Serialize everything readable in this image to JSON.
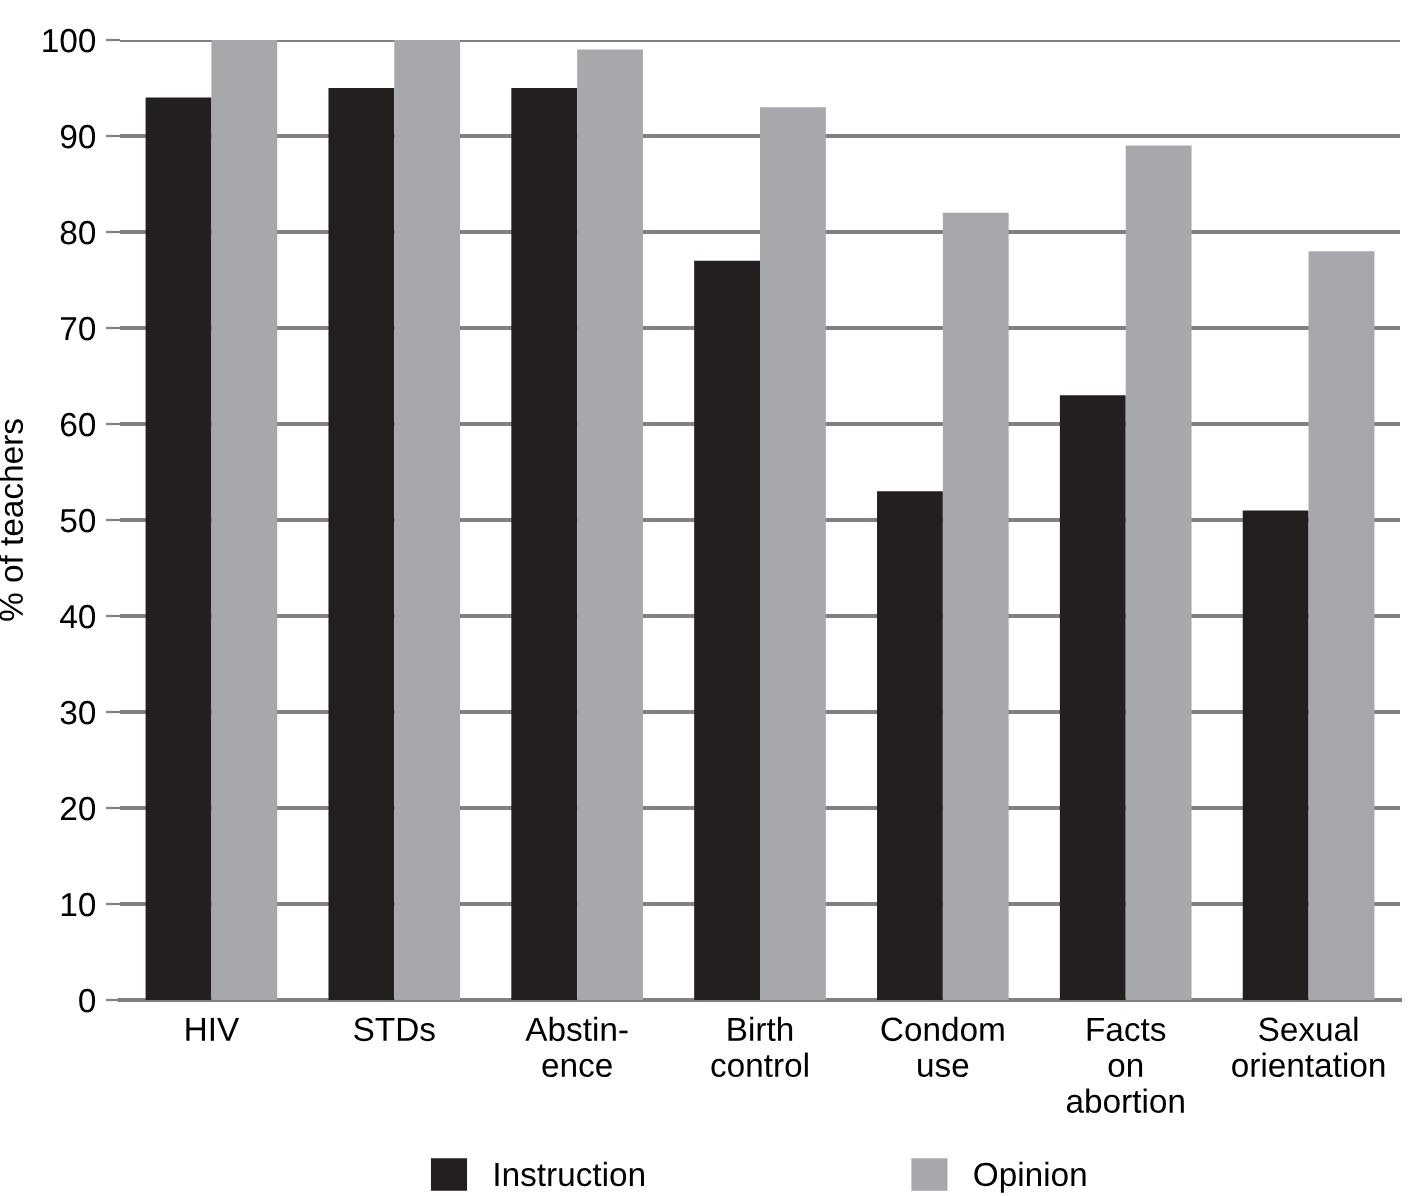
{
  "chart_data": {
    "type": "bar",
    "ylabel": "% of teachers",
    "categories": [
      "HIV",
      "STDs",
      "Abstin-\nence",
      "Birth\ncontrol",
      "Condom\nuse",
      "Facts\non\nabortion",
      "Sexual\norientation"
    ],
    "series": [
      {
        "name": "Instruction",
        "color": "#231f1e",
        "values": [
          94,
          95,
          95,
          77,
          53,
          63,
          51
        ]
      },
      {
        "name": "Opinion",
        "color": "#a7a8ab",
        "values": [
          100,
          100,
          99,
          93,
          82,
          89,
          78
        ]
      }
    ],
    "ylim": [
      0,
      100
    ],
    "yticks": [
      0,
      10,
      20,
      30,
      40,
      50,
      60,
      70,
      80,
      90,
      100
    ],
    "grid": "y",
    "legend": "bottom"
  }
}
